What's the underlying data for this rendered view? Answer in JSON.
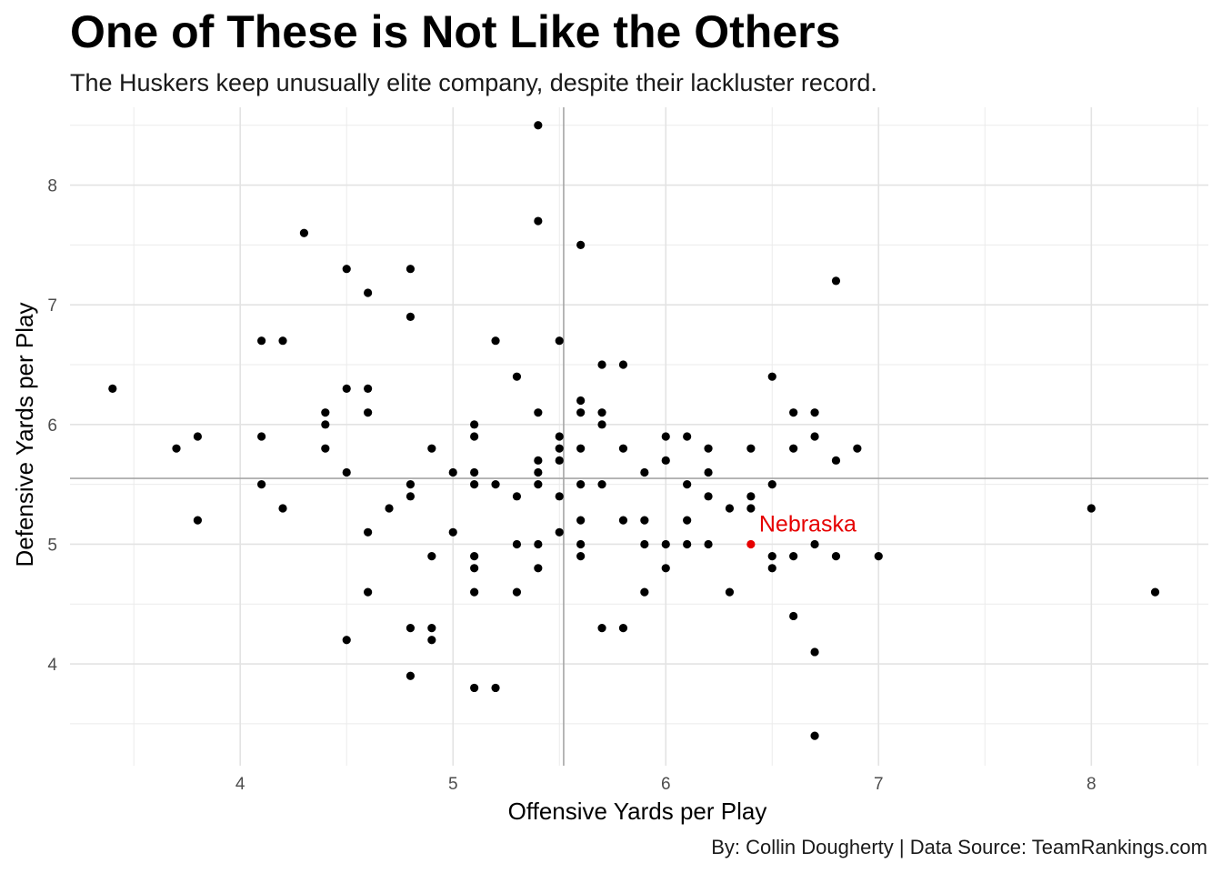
{
  "title": "One of These is Not Like the Others",
  "subtitle": "The Huskers keep unusually elite company, despite their lackluster record.",
  "caption": "By: Collin Dougherty | Data Source: TeamRankings.com",
  "chart_data": {
    "type": "scatter",
    "xlabel": "Offensive Yards per Play",
    "ylabel": "Defensive Yards per Play",
    "xlim": [
      3.2,
      8.55
    ],
    "ylim": [
      3.15,
      8.65
    ],
    "xticks": [
      4,
      5,
      6,
      7,
      8
    ],
    "yticks": [
      4,
      5,
      6,
      7,
      8
    ],
    "grid": true,
    "reference_lines": {
      "x_mean": 5.52,
      "y_mean": 5.55
    },
    "point_color": "#000000",
    "highlight_color": "#e60000",
    "points": [
      [
        3.4,
        6.3
      ],
      [
        3.7,
        5.8
      ],
      [
        3.8,
        5.9
      ],
      [
        3.8,
        5.2
      ],
      [
        4.1,
        6.7
      ],
      [
        4.1,
        5.9
      ],
      [
        4.1,
        5.5
      ],
      [
        4.2,
        6.7
      ],
      [
        4.2,
        5.3
      ],
      [
        4.3,
        7.6
      ],
      [
        4.4,
        6.1
      ],
      [
        4.4,
        6.0
      ],
      [
        4.4,
        5.8
      ],
      [
        4.5,
        7.3
      ],
      [
        4.5,
        6.3
      ],
      [
        4.5,
        5.6
      ],
      [
        4.5,
        4.2
      ],
      [
        4.6,
        7.1
      ],
      [
        4.6,
        6.3
      ],
      [
        4.6,
        6.1
      ],
      [
        4.6,
        5.1
      ],
      [
        4.6,
        4.6
      ],
      [
        4.7,
        5.3
      ],
      [
        4.8,
        7.3
      ],
      [
        4.8,
        6.9
      ],
      [
        4.8,
        5.5
      ],
      [
        4.8,
        5.4
      ],
      [
        4.8,
        4.3
      ],
      [
        4.8,
        3.9
      ],
      [
        4.9,
        5.8
      ],
      [
        4.9,
        4.9
      ],
      [
        4.9,
        4.3
      ],
      [
        4.9,
        4.2
      ],
      [
        5.0,
        5.6
      ],
      [
        5.0,
        5.1
      ],
      [
        5.1,
        6.0
      ],
      [
        5.1,
        5.9
      ],
      [
        5.1,
        5.6
      ],
      [
        5.1,
        5.5
      ],
      [
        5.1,
        4.9
      ],
      [
        5.1,
        4.8
      ],
      [
        5.1,
        4.6
      ],
      [
        5.1,
        3.8
      ],
      [
        5.2,
        6.7
      ],
      [
        5.2,
        5.5
      ],
      [
        5.2,
        3.8
      ],
      [
        5.3,
        6.4
      ],
      [
        5.3,
        5.4
      ],
      [
        5.3,
        5.0
      ],
      [
        5.3,
        4.6
      ],
      [
        5.4,
        8.5
      ],
      [
        5.4,
        7.7
      ],
      [
        5.4,
        6.1
      ],
      [
        5.4,
        5.7
      ],
      [
        5.4,
        5.6
      ],
      [
        5.4,
        5.5
      ],
      [
        5.4,
        5.0
      ],
      [
        5.4,
        4.8
      ],
      [
        5.5,
        6.7
      ],
      [
        5.5,
        5.9
      ],
      [
        5.5,
        5.8
      ],
      [
        5.5,
        5.7
      ],
      [
        5.5,
        5.4
      ],
      [
        5.5,
        5.1
      ],
      [
        5.6,
        7.5
      ],
      [
        5.6,
        6.2
      ],
      [
        5.6,
        6.1
      ],
      [
        5.6,
        5.8
      ],
      [
        5.6,
        5.5
      ],
      [
        5.6,
        5.2
      ],
      [
        5.6,
        5.0
      ],
      [
        5.6,
        4.9
      ],
      [
        5.7,
        6.5
      ],
      [
        5.7,
        6.1
      ],
      [
        5.7,
        6.0
      ],
      [
        5.7,
        5.5
      ],
      [
        5.7,
        4.3
      ],
      [
        5.8,
        6.5
      ],
      [
        5.8,
        5.8
      ],
      [
        5.8,
        5.2
      ],
      [
        5.8,
        4.3
      ],
      [
        5.9,
        5.6
      ],
      [
        5.9,
        5.2
      ],
      [
        5.9,
        5.0
      ],
      [
        5.9,
        4.6
      ],
      [
        6.0,
        5.9
      ],
      [
        6.0,
        5.7
      ],
      [
        6.0,
        5.0
      ],
      [
        6.0,
        4.8
      ],
      [
        6.1,
        5.9
      ],
      [
        6.1,
        5.5
      ],
      [
        6.1,
        5.2
      ],
      [
        6.1,
        5.0
      ],
      [
        6.2,
        5.8
      ],
      [
        6.2,
        5.6
      ],
      [
        6.2,
        5.4
      ],
      [
        6.2,
        5.0
      ],
      [
        6.3,
        5.3
      ],
      [
        6.3,
        4.6
      ],
      [
        6.4,
        5.8
      ],
      [
        6.4,
        5.4
      ],
      [
        6.4,
        5.3
      ],
      [
        6.5,
        6.4
      ],
      [
        6.5,
        5.5
      ],
      [
        6.5,
        4.9
      ],
      [
        6.5,
        4.8
      ],
      [
        6.6,
        6.1
      ],
      [
        6.6,
        5.8
      ],
      [
        6.6,
        4.9
      ],
      [
        6.6,
        4.4
      ],
      [
        6.7,
        6.1
      ],
      [
        6.7,
        5.9
      ],
      [
        6.7,
        5.0
      ],
      [
        6.7,
        4.1
      ],
      [
        6.7,
        3.4
      ],
      [
        6.8,
        7.2
      ],
      [
        6.8,
        5.7
      ],
      [
        6.8,
        4.9
      ],
      [
        6.9,
        5.8
      ],
      [
        7.0,
        4.9
      ],
      [
        8.0,
        5.3
      ],
      [
        8.3,
        4.6
      ]
    ],
    "highlight": {
      "label": "Nebraska",
      "x": 6.4,
      "y": 5.0
    }
  }
}
